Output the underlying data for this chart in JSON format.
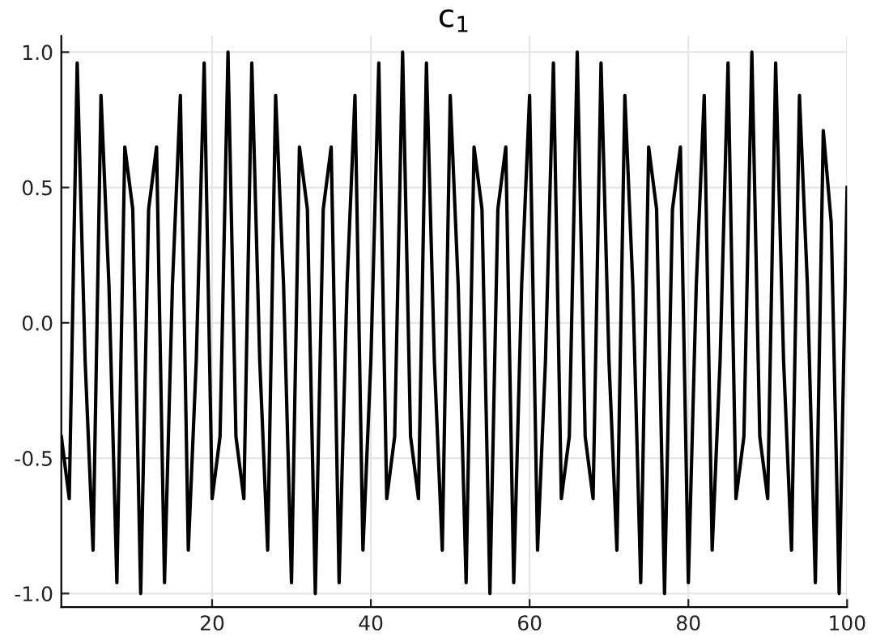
{
  "chart_data": {
    "type": "line",
    "title": "c$_{1}$",
    "x": [
      1,
      2,
      3,
      4,
      5,
      6,
      7,
      8,
      9,
      10,
      11,
      12,
      13,
      14,
      15,
      16,
      17,
      18,
      19,
      20,
      21,
      22,
      23,
      24,
      25,
      26,
      27,
      28,
      29,
      30,
      31,
      32,
      33,
      34,
      35,
      36,
      37,
      38,
      39,
      40,
      41,
      42,
      43,
      44,
      45,
      46,
      47,
      48,
      49,
      50,
      51,
      52,
      53,
      54,
      55,
      56,
      57,
      58,
      59,
      60,
      61,
      62,
      63,
      64,
      65,
      66,
      67,
      68,
      69,
      70,
      71,
      72,
      73,
      74,
      75,
      76,
      77,
      78,
      79,
      80,
      81,
      82,
      83,
      84,
      85,
      86,
      87,
      88,
      89,
      90,
      91,
      92,
      93,
      94,
      95,
      96,
      97,
      98,
      99,
      100
    ],
    "series": [
      {
        "color": "#000000",
        "values": [
          -0.42,
          -0.65,
          0.96,
          -0.14,
          -0.84,
          0.84,
          0.14,
          -0.96,
          0.65,
          0.42,
          -1,
          0.42,
          0.65,
          -0.96,
          0.14,
          0.84,
          -0.84,
          -0.14,
          0.96,
          -0.65,
          -0.42,
          1,
          -0.42,
          -0.65,
          0.96,
          -0.14,
          -0.84,
          0.84,
          0.14,
          -0.96,
          0.65,
          0.42,
          -1,
          0.42,
          0.65,
          -0.96,
          0.14,
          0.84,
          -0.84,
          -0.14,
          0.96,
          -0.65,
          -0.42,
          1,
          -0.42,
          -0.65,
          0.96,
          -0.14,
          -0.84,
          0.84,
          0.14,
          -0.96,
          0.65,
          0.42,
          -1,
          0.42,
          0.65,
          -0.96,
          0.14,
          0.84,
          -0.84,
          -0.14,
          0.96,
          -0.65,
          -0.42,
          1,
          -0.42,
          -0.65,
          0.96,
          -0.14,
          -0.84,
          0.84,
          0.14,
          -0.96,
          0.65,
          0.42,
          -1,
          0.42,
          0.65,
          -0.96,
          0.14,
          0.84,
          -0.84,
          -0.14,
          0.96,
          -0.65,
          -0.42,
          1,
          -0.42,
          -0.65,
          0.96,
          -0.14,
          -0.84,
          0.84,
          0.14,
          -0.96,
          0.71,
          0.37,
          -1,
          0.5
        ]
      }
    ],
    "xlim": [
      1,
      100
    ],
    "xticks": [
      20,
      40,
      60,
      80,
      100
    ],
    "ylim": [
      -1.05,
      1.06
    ],
    "yticks": [
      {
        "value": -1,
        "label": "-1.0"
      },
      {
        "value": -0.5,
        "label": "-0.5"
      },
      {
        "value": 0,
        "label": "0.0"
      },
      {
        "value": 0.5,
        "label": "0.5"
      },
      {
        "value": 1,
        "label": "1.0"
      }
    ],
    "grid": true,
    "line_style": "solid",
    "marker": "none"
  }
}
